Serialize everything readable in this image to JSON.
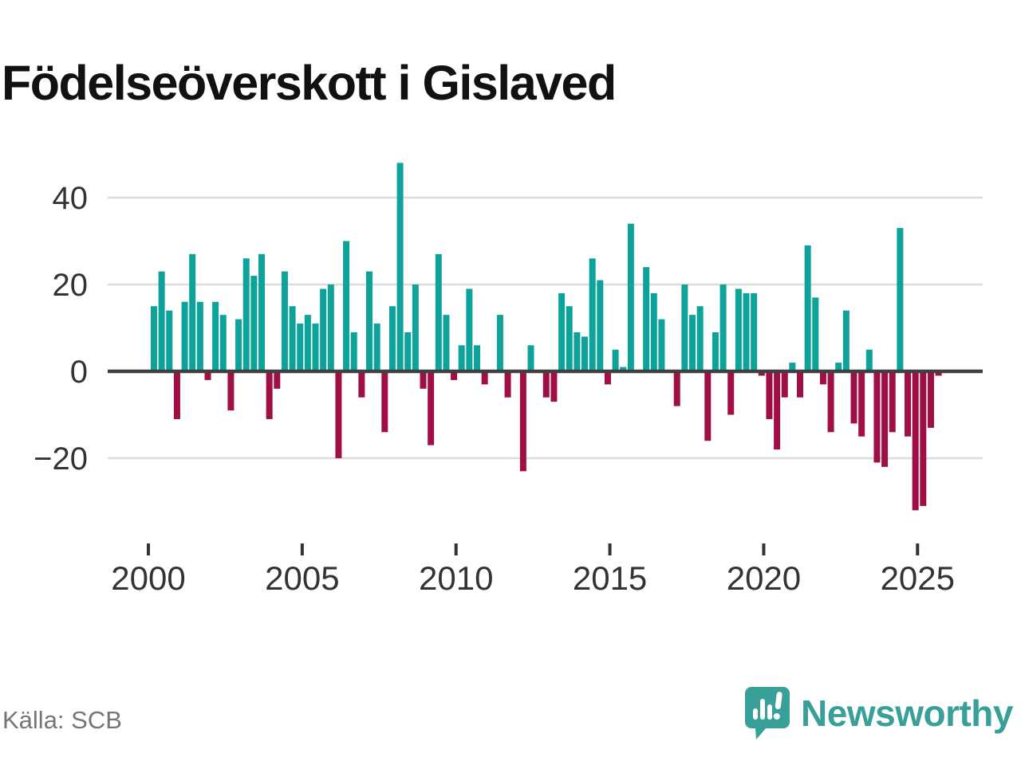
{
  "title": "Födelseöverskott i Gislaved",
  "source": "Källa: SCB",
  "branding": {
    "name": "Newsworthy",
    "icon": "bar-chart-speech-bubble-icon",
    "color": "#38a099"
  },
  "colors": {
    "positive_bar": "#0da29a",
    "negative_bar": "#a00e46",
    "zero_line": "#404040",
    "gridline": "#dcdcdc",
    "axis_text": "#333333"
  },
  "chart_data": {
    "type": "bar",
    "title": "Födelseöverskott i Gislaved",
    "x_start": "2000 Q1",
    "x_interval": "quarter",
    "series_name": "Födelseöverskott",
    "values": [
      15,
      23,
      14,
      -11,
      16,
      27,
      16,
      -2,
      16,
      13,
      -9,
      12,
      26,
      22,
      27,
      -11,
      -4,
      23,
      15,
      11,
      13,
      11,
      19,
      20,
      -20,
      30,
      9,
      -6,
      23,
      11,
      -14,
      15,
      48,
      9,
      20,
      -4,
      -17,
      27,
      13,
      -2,
      6,
      19,
      6,
      -3,
      0,
      13,
      -6,
      0,
      -23,
      6,
      0,
      -6,
      -7,
      18,
      15,
      9,
      8,
      26,
      21,
      -3,
      5,
      1,
      34,
      0,
      24,
      18,
      12,
      0,
      -8,
      20,
      13,
      15,
      -16,
      9,
      20,
      -10,
      19,
      18,
      18,
      -1,
      -11,
      -18,
      -6,
      2,
      -6,
      29,
      17,
      -3,
      -14,
      2,
      14,
      -12,
      -15,
      5,
      -21,
      -22,
      -14,
      33,
      -15,
      -32,
      -31,
      -13,
      -1
    ],
    "x_tick_labels": [
      "2000",
      "2005",
      "2010",
      "2015",
      "2020",
      "2025"
    ],
    "y_ticks": [
      40,
      20,
      0,
      -20
    ],
    "y_tick_labels": [
      "40",
      "20",
      "0",
      "−20"
    ],
    "ylim": [
      -35,
      50
    ],
    "grid": true,
    "legend": "none",
    "positive_color": "#0da29a",
    "negative_color": "#a00e46"
  }
}
